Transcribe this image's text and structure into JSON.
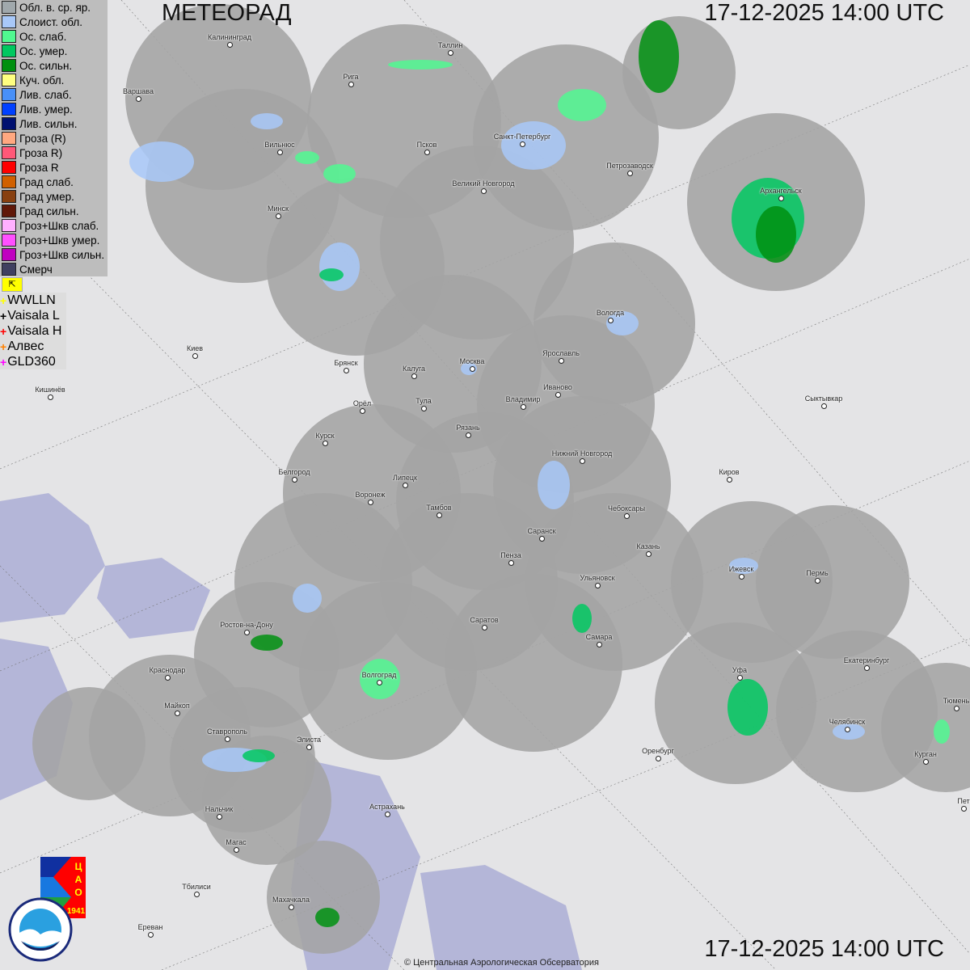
{
  "header": {
    "title": "МЕТЕОРАД",
    "datetime": "17-12-2025  14:00 UTC"
  },
  "legend": [
    {
      "label": "Обл. в. ср. яр.",
      "color": "#a0a8ac"
    },
    {
      "label": "Слоист. обл.",
      "color": "#a8c8f8"
    },
    {
      "label": "Ос. слаб.",
      "color": "#50f890"
    },
    {
      "label": "Ос. умер.",
      "color": "#00c860"
    },
    {
      "label": "Ос. сильн.",
      "color": "#009010"
    },
    {
      "label": "Куч. обл.",
      "color": "#ffff80"
    },
    {
      "label": "Лив. слаб.",
      "color": "#4890f8"
    },
    {
      "label": "Лив. умер.",
      "color": "#0040ff"
    },
    {
      "label": "Лив. сильн.",
      "color": "#001070"
    },
    {
      "label": "Гроза (R)",
      "color": "#ffa880"
    },
    {
      "label": "Гроза R)",
      "color": "#ff5878"
    },
    {
      "label": "Гроза R",
      "color": "#ff0000"
    },
    {
      "label": "Град слаб.",
      "color": "#d06000"
    },
    {
      "label": "Град умер.",
      "color": "#884010"
    },
    {
      "label": "Град сильн.",
      "color": "#601808"
    },
    {
      "label": "Гроз+Шкв слаб.",
      "color": "#ffb0ff"
    },
    {
      "label": "Гроз+Шкв умер.",
      "color": "#ff50ff"
    },
    {
      "label": "Гроз+Шкв сильн.",
      "color": "#c000c0"
    },
    {
      "label": "Смерч",
      "color": "#404060"
    }
  ],
  "lightning_networks": [
    {
      "label": "WWLLN",
      "color": "#ffff00"
    },
    {
      "label": "Vaisala L",
      "color": "#000000"
    },
    {
      "label": "Vaisala H",
      "color": "#ff0000"
    },
    {
      "label": "Алвес",
      "color": "#ff8000"
    },
    {
      "label": "GLD360",
      "color": "#ff00ff"
    }
  ],
  "cities": [
    "Калининград",
    "Таллин",
    "Рига",
    "Варшава",
    "Вильнюс",
    "Псков",
    "Санкт-Петербург",
    "Петрозаводск",
    "Архангельск",
    "Великий Новгород",
    "Минск",
    "Вологда",
    "Киев",
    "Брянск",
    "Калуга",
    "Москва",
    "Ярославль",
    "Иваново",
    "Кишинёв",
    "Орёл",
    "Тула",
    "Владимир",
    "Сыктывкар",
    "Курск",
    "Рязань",
    "Нижний Новгород",
    "Белгород",
    "Киров",
    "Липецк",
    "Воронеж",
    "Тамбов",
    "Чебоксары",
    "Саранск",
    "Казань",
    "Пенза",
    "Ижевск",
    "Пермь",
    "Ульяновск",
    "Ростов-на-Дону",
    "Саратов",
    "Самара",
    "Краснодар",
    "Уфа",
    "Екатеринбург",
    "Волгоград",
    "Майкоп",
    "Тюмень",
    "Челябинск",
    "Ставрополь",
    "Элиста",
    "Оренбург",
    "Курган",
    "Нальчик",
    "Астрахань",
    "Пет",
    "Магас",
    "Тбилиси",
    "Махачкала",
    "Ереван"
  ],
  "logos": {
    "cao": "ЦАО 1941",
    "roshydromet": "РОСГИДРОМЕТ ROSHYDROMET"
  },
  "copyright": "© Центральная Аэрологическая Обсерватория"
}
